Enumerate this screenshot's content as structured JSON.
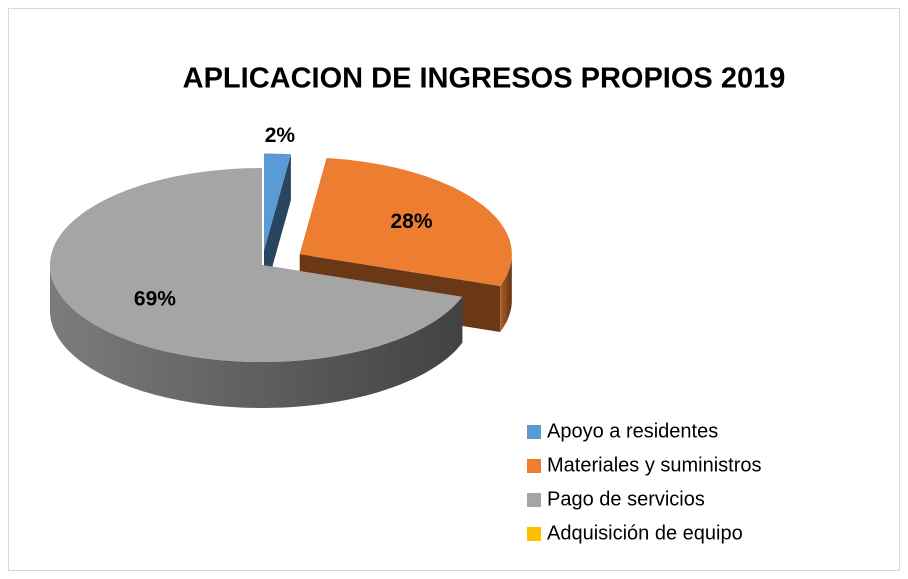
{
  "chart_data": {
    "type": "pie",
    "title": "APLICACION DE INGRESOS PROPIOS 2019",
    "categories": [
      "Apoyo a residentes",
      "Materiales y suministros",
      "Pago de servicios",
      "Adquisición de equipo"
    ],
    "values": [
      2,
      28,
      69,
      0
    ],
    "value_labels": [
      "2%",
      "28%",
      "69%",
      null
    ],
    "colors": [
      "#5b9bd5",
      "#ed7d31",
      "#a5a5a5",
      "#ffc000"
    ],
    "legend": "right"
  }
}
